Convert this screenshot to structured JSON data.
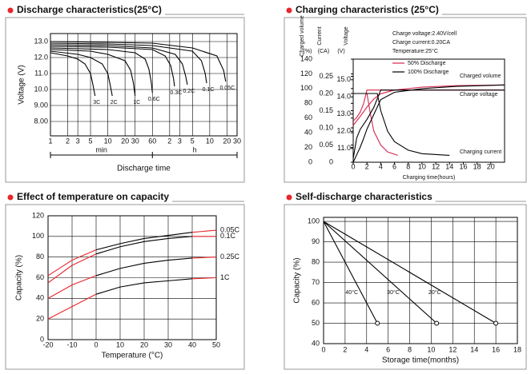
{
  "chart_data": [
    {
      "type": "line",
      "title": "Discharge characteristics(25°C)",
      "y_label": "Voltage (V)",
      "x_label": "Discharge time",
      "x_units": [
        "min",
        "h"
      ],
      "xscale": "log",
      "xlim": [
        1,
        1800
      ],
      "xticks": [
        1,
        2,
        3,
        5,
        10,
        20,
        30,
        60,
        {
          "value": 120,
          "label": "2"
        },
        {
          "value": 180,
          "label": "3"
        },
        {
          "value": 300,
          "label": "5"
        },
        {
          "value": 600,
          "label": "10"
        },
        {
          "value": 1200,
          "label": "20"
        },
        {
          "value": 1800,
          "label": "30"
        }
      ],
      "ylim": [
        7.1,
        13.5
      ],
      "yticks": [
        {
          "value": 8,
          "label": "8.00"
        },
        {
          "value": 9,
          "label": "9.00"
        },
        {
          "value": 10,
          "label": "10.0"
        },
        {
          "value": 11,
          "label": "11.0"
        },
        {
          "value": 12,
          "label": "12.0"
        },
        {
          "value": 13,
          "label": "13.0"
        }
      ],
      "grid": true,
      "color": "#000000",
      "series": [
        {
          "name": "3C",
          "x": [
            1,
            2,
            3,
            4,
            5,
            5.5,
            6
          ],
          "values": [
            12.3,
            12.1,
            11.9,
            11.6,
            11.0,
            10.3,
            9.6
          ]
        },
        {
          "name": "2C",
          "x": [
            1,
            3,
            5,
            8,
            10,
            11,
            12
          ],
          "values": [
            12.4,
            12.2,
            12.0,
            11.6,
            11.0,
            10.3,
            9.6
          ]
        },
        {
          "name": "1C",
          "x": [
            1,
            5,
            10,
            20,
            25,
            28,
            30
          ],
          "values": [
            12.5,
            12.4,
            12.2,
            11.8,
            11.2,
            10.4,
            9.6
          ]
        },
        {
          "name": "0.6C",
          "x": [
            1,
            10,
            30,
            45,
            52,
            57,
            60
          ],
          "values": [
            12.6,
            12.5,
            12.3,
            11.9,
            11.3,
            10.5,
            9.8
          ]
        },
        {
          "name": "0.3C",
          "x": [
            1,
            10,
            60,
            100,
            125,
            140,
            146
          ],
          "values": [
            12.7,
            12.65,
            12.5,
            12.1,
            11.5,
            10.7,
            10.2
          ]
        },
        {
          "name": "0.2C",
          "x": [
            1,
            10,
            60,
            150,
            200,
            230,
            244
          ],
          "values": [
            12.8,
            12.75,
            12.6,
            12.2,
            11.6,
            10.8,
            10.3
          ]
        },
        {
          "name": "0.1C",
          "x": [
            1,
            10,
            60,
            300,
            430,
            500,
            530
          ],
          "values": [
            12.9,
            12.85,
            12.75,
            12.4,
            11.8,
            11.0,
            10.4
          ]
        },
        {
          "name": "0.05C",
          "x": [
            1,
            10,
            60,
            300,
            800,
            1050,
            1140
          ],
          "values": [
            13.0,
            12.95,
            12.9,
            12.6,
            12.1,
            11.2,
            10.5
          ]
        }
      ]
    },
    {
      "type": "line",
      "title": "Charging characteristics (25°C)",
      "x_label": "Charging time(hours)",
      "y_label": "Charged volume",
      "y_unit": "(%)",
      "y2_label": "Current",
      "y2_unit": "(CA)",
      "y3_label": "Voltage",
      "y3_unit": "(V)",
      "xlim": [
        0,
        22
      ],
      "xticks": [
        0,
        2,
        4,
        6,
        8,
        10,
        12,
        14,
        16,
        18,
        20
      ],
      "ylim": [
        0,
        140
      ],
      "yticks": [
        0,
        20,
        40,
        60,
        80,
        100,
        120,
        140
      ],
      "y2lim": [
        0,
        0.3
      ],
      "y2ticks": [
        0,
        0.05,
        {
          "value": 0.1,
          "label": "0.10"
        },
        0.15,
        {
          "value": 0.2,
          "label": "0.20"
        },
        0.25
      ],
      "y3lim": [
        10.2,
        16.2
      ],
      "y3ticks": [
        {
          "value": 11,
          "label": "11.0"
        },
        {
          "value": 12,
          "label": "12.0"
        },
        {
          "value": 13,
          "label": "13.0"
        },
        {
          "value": 14,
          "label": "14.0"
        },
        {
          "value": 15,
          "label": "15.0"
        }
      ],
      "annotations": [
        "Charge voltage:2.40V/cell",
        "Charge current:0.20CA",
        "Temperature:25°C"
      ],
      "legend": [
        {
          "name": "50% Discharge",
          "color": "#d6254d"
        },
        {
          "name": "100% Discharge",
          "color": "#000000"
        }
      ],
      "curve_labels": [
        "Charged volume",
        "Charge voltage",
        "Charging current"
      ],
      "series": [
        {
          "axis": "y",
          "color": "#d6254d",
          "x": [
            0,
            1,
            2,
            3,
            4,
            6,
            10,
            15,
            22
          ],
          "values": [
            50,
            62,
            75,
            86,
            93,
            98,
            102,
            104,
            105
          ]
        },
        {
          "axis": "y3",
          "color": "#d6254d",
          "x": [
            0,
            0.5,
            1,
            1.5,
            2,
            22
          ],
          "values": [
            12.6,
            12.8,
            13.1,
            13.6,
            14.4,
            14.4
          ]
        },
        {
          "axis": "y2",
          "color": "#d6254d",
          "x": [
            0,
            2,
            2.5,
            3,
            4,
            5,
            6.5
          ],
          "values": [
            0.2,
            0.2,
            0.14,
            0.09,
            0.05,
            0.03,
            0.02
          ]
        },
        {
          "axis": "y",
          "color": "#000000",
          "x": [
            0,
            0.5,
            1,
            1.5,
            2,
            3,
            4,
            6,
            10,
            15,
            22
          ],
          "values": [
            0,
            10,
            20,
            32,
            45,
            65,
            85,
            95,
            100,
            103,
            105
          ]
        },
        {
          "axis": "y3",
          "color": "#000000",
          "x": [
            0,
            0.5,
            1,
            2,
            3,
            3.5,
            4,
            22
          ],
          "values": [
            10.4,
            11.6,
            12.1,
            12.7,
            13.4,
            13.9,
            14.4,
            14.4
          ]
        },
        {
          "axis": "y2",
          "color": "#000000",
          "x": [
            0,
            3.5,
            4,
            5,
            6,
            8,
            10,
            14
          ],
          "values": [
            0.2,
            0.2,
            0.15,
            0.09,
            0.06,
            0.035,
            0.025,
            0.02
          ]
        }
      ]
    },
    {
      "type": "line",
      "title": "Effect of temperature on capacity",
      "y_label": "Capacity (%)",
      "x_label": "Temperature (°C)",
      "xlim": [
        -20,
        50
      ],
      "xticks": [
        -20,
        -10,
        0,
        10,
        20,
        30,
        40,
        50
      ],
      "ylim": [
        0,
        120
      ],
      "yticks": [
        0,
        20,
        40,
        60,
        80,
        100,
        120
      ],
      "grid": true,
      "x": [
        -20,
        -10,
        0,
        10,
        20,
        30,
        40,
        50
      ],
      "colors": [
        "#e8262b",
        "#e8262b",
        "#000000",
        "#000000",
        "#000000",
        "#000000",
        "#e8262b",
        "#e8262b"
      ],
      "series": [
        {
          "name": "0.05C",
          "values": [
            62,
            77,
            87,
            93,
            98,
            101,
            104,
            106
          ]
        },
        {
          "name": "0.1C",
          "values": [
            55,
            72,
            83,
            90,
            95,
            98,
            100,
            100
          ]
        },
        {
          "name": "0.25C",
          "values": [
            40,
            53,
            62,
            69,
            74,
            77,
            79,
            80
          ]
        },
        {
          "name": "1C",
          "values": [
            20,
            32,
            44,
            51,
            55,
            57,
            59,
            60
          ]
        }
      ]
    },
    {
      "type": "line",
      "title": "Self-discharge characteristics",
      "y_label": "Capacity (%)",
      "x_label": "Storage time(months)",
      "xlim": [
        0,
        18
      ],
      "xticks": [
        0,
        2,
        4,
        6,
        8,
        10,
        12,
        14,
        16,
        18
      ],
      "ylim": [
        40,
        102
      ],
      "yticks": [
        40,
        50,
        60,
        70,
        80,
        90,
        100
      ],
      "grid": true,
      "color": "#000000",
      "series": [
        {
          "name": "40°C",
          "x": [
            0,
            5
          ],
          "values": [
            100,
            50
          ]
        },
        {
          "name": "30°C",
          "x": [
            0,
            10.5
          ],
          "values": [
            100,
            50
          ]
        },
        {
          "name": "20°C",
          "x": [
            0,
            16
          ],
          "values": [
            100,
            50
          ]
        }
      ]
    }
  ]
}
